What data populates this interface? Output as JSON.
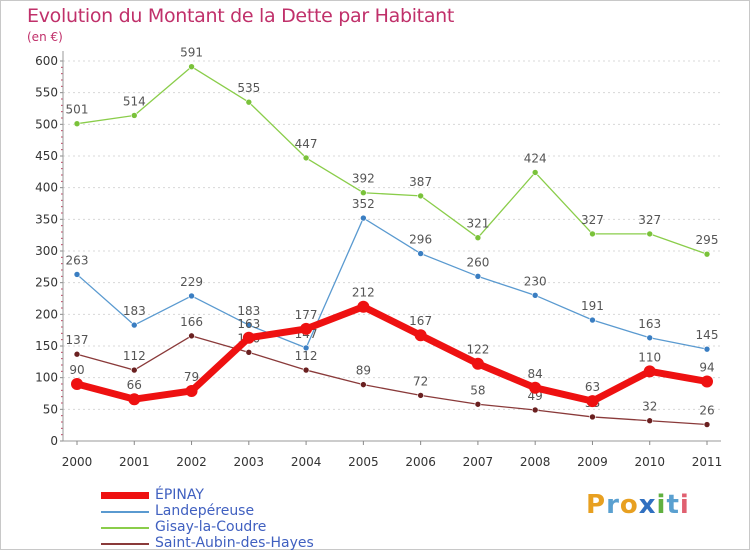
{
  "header": {
    "title": "Evolution du Montant de la Dette par Habitant",
    "unit": "(en €)"
  },
  "logo": {
    "letters": [
      "P",
      "r",
      "o",
      "x",
      "i",
      "t",
      "i"
    ],
    "colors": [
      "#e8a020",
      "#5aa0d0",
      "#e8a020",
      "#3070c0",
      "#60b040",
      "#5aa0d0",
      "#e06070"
    ]
  },
  "chart_data": {
    "type": "line",
    "x": [
      "2000",
      "2001",
      "2002",
      "2003",
      "2004",
      "2005",
      "2006",
      "2007",
      "2008",
      "2009",
      "2010",
      "2011"
    ],
    "yticks": [
      0,
      50,
      100,
      150,
      200,
      250,
      300,
      350,
      400,
      450,
      500,
      550,
      600
    ],
    "ylim": [
      0,
      600
    ],
    "grid": "horizontal dotted",
    "legend_position": "bottom-left",
    "series": [
      {
        "name": "Gisay-la-Coudre",
        "color": "#8acd4a",
        "marker": "#7ac23a",
        "values": [
          501,
          514,
          591,
          535,
          447,
          392,
          387,
          321,
          424,
          327,
          327,
          295
        ],
        "labels": [
          "501",
          "514",
          "591",
          "535",
          "447",
          "392",
          "387",
          "321",
          "424",
          "327",
          "327",
          "295"
        ]
      },
      {
        "name": "Landepéreuse",
        "color": "#5a9ad0",
        "marker": "#3a7ec2",
        "values": [
          263,
          183,
          229,
          183,
          147,
          352,
          296,
          260,
          230,
          191,
          163,
          145
        ],
        "labels": [
          "263",
          "183",
          "229",
          "183",
          "147",
          "352",
          "296",
          "260",
          "230",
          "191",
          "163",
          "145"
        ]
      },
      {
        "name": "Saint-Aubin-des-Hayes",
        "color": "#8a3a3a",
        "marker": "#6a2020",
        "values": [
          137,
          112,
          166,
          140,
          112,
          89,
          72,
          58,
          49,
          38,
          32,
          26
        ],
        "labels": [
          "137",
          "112",
          "166",
          "140",
          "112",
          "89",
          "72",
          "58",
          "49",
          "38",
          "32",
          "26"
        ]
      },
      {
        "name": "ÉPINAY",
        "color": "#ee1111",
        "marker": "#ee1111",
        "values": [
          90,
          66,
          79,
          163,
          177,
          212,
          167,
          122,
          84,
          63,
          110,
          94
        ],
        "labels": [
          "90",
          "66",
          "79",
          "163",
          "177",
          "212",
          "167",
          "122",
          "84",
          "63",
          "110",
          "94"
        ]
      }
    ],
    "legend_order": [
      "ÉPINAY",
      "Landepéreuse",
      "Gisay-la-Coudre",
      "Saint-Aubin-des-Hayes"
    ]
  }
}
